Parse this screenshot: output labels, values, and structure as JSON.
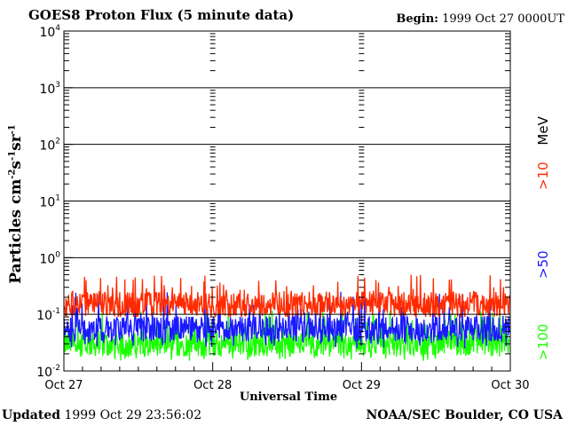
{
  "header": {
    "title": "GOES8 Proton Flux (5 minute data)",
    "begin_label": "Begin:",
    "begin_value": "1999 Oct 27 0000UT"
  },
  "footer": {
    "updated_label": "Updated",
    "updated_value": "1999 Oct 29 23:56:02",
    "credit": "NOAA/SEC Boulder, CO USA"
  },
  "chart_data": {
    "type": "line",
    "ylabel": "Particles cm⁻²s⁻¹sr⁻¹",
    "ylabel_parts": {
      "base": "Particles cm",
      "e1": "-2",
      "s": "s",
      "e2": "-1",
      "sr": "sr",
      "e3": "-1"
    },
    "xlabel": "Universal Time",
    "x_tick_labels": [
      "Oct 27",
      "Oct 28",
      "Oct 29",
      "Oct 30"
    ],
    "x_range_days": [
      0,
      3
    ],
    "y_scale": "log",
    "ylim": [
      0.01,
      10000
    ],
    "y_tick_labels": [
      {
        "base": "10",
        "exp": "4"
      },
      {
        "base": "10",
        "exp": "3"
      },
      {
        "base": "10",
        "exp": "2"
      },
      {
        "base": "10",
        "exp": "1"
      },
      {
        "base": "10",
        "exp": "0"
      },
      {
        "base": "10",
        "exp": "-1"
      },
      {
        "base": "10",
        "exp": "-2"
      }
    ],
    "legend_placement": "right-vertical",
    "legend_unit": "MeV",
    "series": [
      {
        "name": ">10",
        "color": "#ff2a00",
        "typical": 0.15,
        "min": 0.09,
        "max": 0.5
      },
      {
        "name": ">50",
        "color": "#1a1aff",
        "typical": 0.055,
        "min": 0.025,
        "max": 0.25
      },
      {
        "name": ">100",
        "color": "#19ff00",
        "typical": 0.03,
        "min": 0.015,
        "max": 0.12
      }
    ]
  },
  "colors": {
    "grid": "#000000",
    "background": "#ffffff"
  }
}
